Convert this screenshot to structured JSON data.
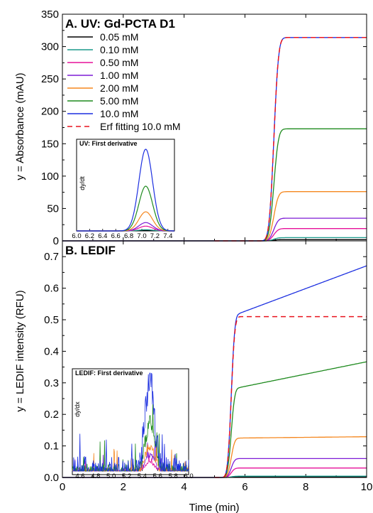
{
  "chart_data": [
    {
      "type": "line",
      "title": "A. UV: Gd-PCTA D1",
      "xlabel": "",
      "ylabel": "y = Absorbance (mAU)",
      "xlim": [
        0,
        10
      ],
      "ylim": [
        0,
        350
      ],
      "x_ticks": [
        0,
        2,
        4,
        6,
        8,
        10
      ],
      "y_ticks": [
        0,
        50,
        100,
        150,
        200,
        250,
        300,
        350
      ],
      "y_tick_labels": [
        "0",
        "50",
        "100",
        "150",
        "200",
        "250",
        "300",
        "350"
      ],
      "x_tick_labels": [],
      "legend_position": "top-left",
      "series": [
        {
          "name": "0.05 mM",
          "color": "#000000",
          "dash": false,
          "baseline": 0,
          "step_center": 6.95,
          "plateau": 2,
          "slope_after": 0
        },
        {
          "name": "0.10 mM",
          "color": "#1a9a8c",
          "dash": false,
          "baseline": 0,
          "step_center": 6.95,
          "plateau": 5,
          "slope_after": 0
        },
        {
          "name": "0.50 mM",
          "color": "#e6109a",
          "dash": false,
          "baseline": 0,
          "step_center": 6.95,
          "plateau": 19,
          "slope_after": 0
        },
        {
          "name": "1.00 mM",
          "color": "#7d1bd6",
          "dash": false,
          "baseline": 0,
          "step_center": 6.95,
          "plateau": 35,
          "slope_after": 0
        },
        {
          "name": "2.00 mM",
          "color": "#f5871f",
          "dash": false,
          "baseline": 0,
          "step_center": 6.95,
          "plateau": 76,
          "slope_after": 0
        },
        {
          "name": "5.00 mM",
          "color": "#1e8a1e",
          "dash": false,
          "baseline": 0,
          "step_center": 6.95,
          "plateau": 173,
          "slope_after": 0
        },
        {
          "name": "10.0 mM",
          "color": "#1c2fe0",
          "dash": false,
          "baseline": 0,
          "step_center": 6.95,
          "plateau": 314,
          "slope_after": 0
        },
        {
          "name": "Erf fitting 10.0 mM",
          "color": "#e8141e",
          "dash": true,
          "baseline": 0,
          "step_center": 6.95,
          "plateau": 314,
          "slope_after": 0
        }
      ],
      "step_width": 0.17,
      "inset": {
        "title": "UV: First derivative",
        "ylabel": "dy/dt",
        "xlim": [
          6.0,
          7.5
        ],
        "x_tick_labels": [
          "6.0",
          "6.2",
          "6.4",
          "6.6",
          "6.8",
          "7.0",
          "7.2",
          "7.4"
        ],
        "peak_center": 7.06,
        "peak_sigma": 0.105,
        "peak_heights": {
          "0.05 mM": 1,
          "0.10 mM": 2,
          "0.50 mM": 8,
          "1.00 mM": 14,
          "2.00 mM": 32,
          "5.00 mM": 75,
          "10.0 mM": 137
        }
      }
    },
    {
      "type": "line",
      "title": "B. LEDIF",
      "xlabel": "Time (min)",
      "ylabel": "y = LEDIF intensity (RFU)",
      "xlim": [
        0,
        10
      ],
      "ylim": [
        0,
        0.75
      ],
      "x_ticks": [
        0,
        2,
        4,
        6,
        8,
        10
      ],
      "x_tick_labels": [
        "0",
        "2",
        "4",
        "6",
        "8",
        "10"
      ],
      "y_ticks": [
        0.0,
        0.1,
        0.2,
        0.3,
        0.4,
        0.5,
        0.6,
        0.7
      ],
      "y_tick_labels": [
        "0.0",
        "0.1",
        "0.2",
        "0.3",
        "0.4",
        "0.5",
        "0.6",
        "0.7"
      ],
      "series": [
        {
          "name": "0.05 mM",
          "color": "#000000",
          "dash": false,
          "baseline": 0,
          "step_center": 5.55,
          "plateau": 0.002,
          "slope_after": 0
        },
        {
          "name": "0.10 mM",
          "color": "#1a9a8c",
          "dash": false,
          "baseline": 0,
          "step_center": 5.55,
          "plateau": 0.004,
          "slope_after": 0
        },
        {
          "name": "0.50 mM",
          "color": "#e6109a",
          "dash": false,
          "baseline": 0,
          "step_center": 5.55,
          "plateau": 0.03,
          "slope_after": 0
        },
        {
          "name": "1.00 mM",
          "color": "#7d1bd6",
          "dash": false,
          "baseline": 0,
          "step_center": 5.55,
          "plateau": 0.06,
          "slope_after": 0
        },
        {
          "name": "2.00 mM",
          "color": "#f5871f",
          "dash": false,
          "baseline": 0,
          "step_center": 5.55,
          "plateau": 0.125,
          "slope_after": 0.001
        },
        {
          "name": "5.00 mM",
          "color": "#1e8a1e",
          "dash": false,
          "baseline": 0,
          "step_center": 5.55,
          "plateau": 0.285,
          "slope_after": 0.0195
        },
        {
          "name": "10.0 mM",
          "color": "#1c2fe0",
          "dash": false,
          "baseline": 0,
          "step_center": 5.55,
          "plateau": 0.52,
          "slope_after": 0.036
        },
        {
          "name": "Erf fitting 10.0 mM",
          "color": "#e8141e",
          "dash": true,
          "baseline": 0,
          "step_center": 5.55,
          "plateau": 0.51,
          "slope_after": 0
        }
      ],
      "step_width": 0.13,
      "inset": {
        "title": "LEDIF: First derivative",
        "ylabel": "dy/dx",
        "xlim": [
          4.5,
          6.0
        ],
        "x_tick_labels": [
          "4.6",
          "4.8",
          "5.0",
          "5.2",
          "5.4",
          "5.6",
          "5.8",
          "6.0"
        ],
        "peak_center": 5.5,
        "peak_sigma": 0.06,
        "peak_heights": {
          "0.50 mM": 0.05,
          "1.00 mM": 0.09,
          "2.00 mM": 0.14,
          "5.00 mM": 0.27,
          "10.0 mM": 0.52
        }
      }
    }
  ]
}
